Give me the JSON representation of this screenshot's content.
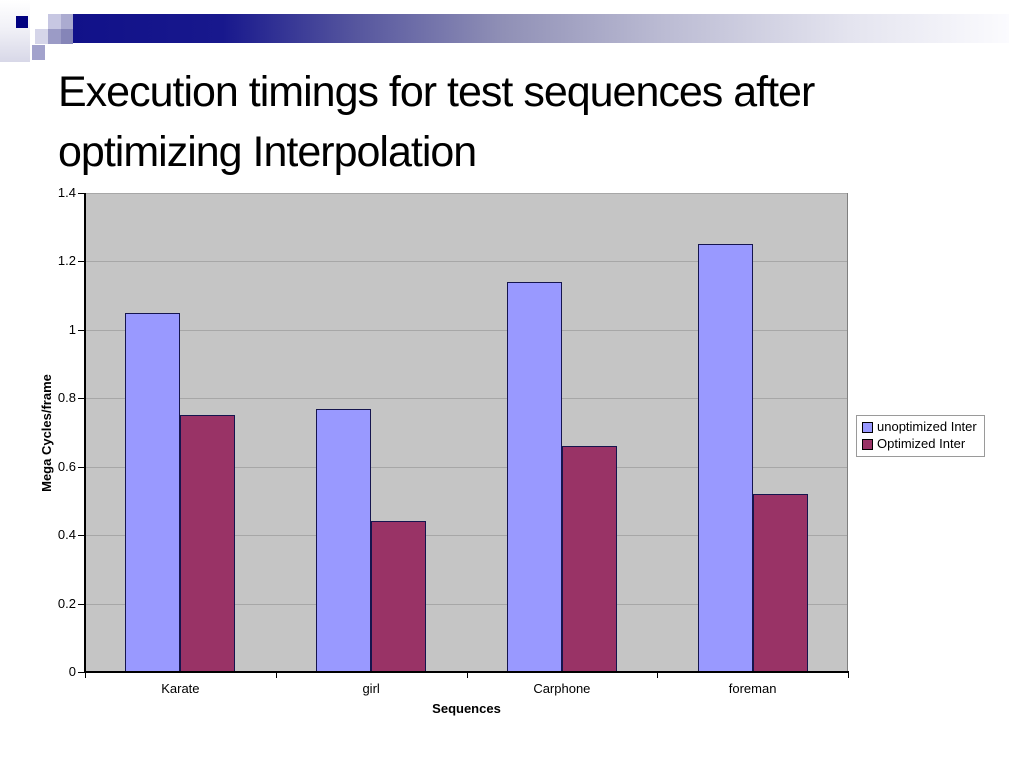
{
  "slide": {
    "title": "Execution timings for test sequences after optimizing Interpolation"
  },
  "chart_data": {
    "type": "bar",
    "title": "",
    "categories": [
      "Karate",
      "girl",
      "Carphone",
      "foreman"
    ],
    "series": [
      {
        "name": "unoptimized Inter",
        "color": "#9999ff",
        "values": [
          1.05,
          0.77,
          1.14,
          1.25
        ]
      },
      {
        "name": "Optimized Inter",
        "color": "#993366",
        "values": [
          0.75,
          0.44,
          0.66,
          0.52
        ]
      }
    ],
    "xlabel": "Sequences",
    "ylabel": "Mega Cycles/frame",
    "ylim": [
      0,
      1.4
    ],
    "yticks": [
      0,
      0.2,
      0.4,
      0.6,
      0.8,
      1,
      1.2,
      1.4
    ],
    "ytick_labels": [
      "0",
      "0.2",
      "0.4",
      "0.6",
      "0.8",
      "1",
      "1.2",
      "1.4"
    ],
    "grid": true,
    "legend_position": "right",
    "plot_background": "#c5c5c5",
    "gridline_color": "#a7a7a7",
    "bar_border_color": "#15154e",
    "axis_color": "#000000"
  },
  "decoration": {
    "banner_start_color": "#111189",
    "banner_end_color": "#fbfbfe",
    "accent_square_color": "#000080"
  }
}
